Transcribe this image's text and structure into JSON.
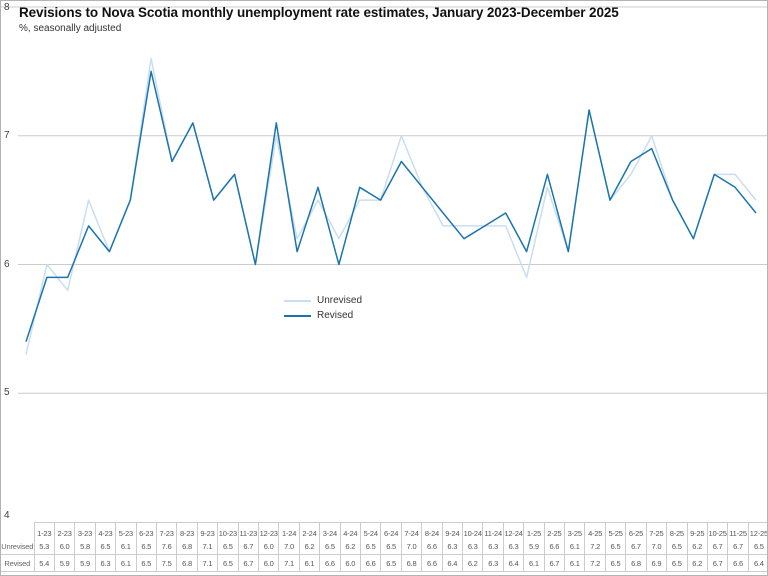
{
  "header": {
    "title": "Revisions to Nova Scotia monthly unemployment rate estimates, January 2023-December 2025",
    "subtitle": "%, seasonally adjusted"
  },
  "colors": {
    "unrevised": "#c9def0",
    "revised": "#1b75ad",
    "grid": "#cccccc",
    "table_line": "#cccccc",
    "text": "#333333"
  },
  "legend": {
    "items": [
      {
        "label": "Unrevised",
        "color_key": "unrevised"
      },
      {
        "label": "Revised",
        "color_key": "revised"
      }
    ]
  },
  "table": {
    "row_labels": [
      "Unrevised",
      "Revised"
    ]
  },
  "chart_data": {
    "type": "line",
    "title": "Revisions to Nova Scotia monthly unemployment rate estimates, January 2023-December 2025",
    "subtitle": "%, seasonally adjusted",
    "xlabel": "",
    "ylabel": "%",
    "ylim": [
      4,
      8
    ],
    "yticks": [
      8,
      7,
      6,
      5,
      4
    ],
    "grid": true,
    "legend_position": "center-left",
    "categories": [
      "1-23",
      "2-23",
      "3-23",
      "4-23",
      "5-23",
      "6-23",
      "7-23",
      "8-23",
      "9-23",
      "10-23",
      "11-23",
      "12-23",
      "1-24",
      "2-24",
      "3-24",
      "4-24",
      "5-24",
      "6-24",
      "7-24",
      "8-24",
      "9-24",
      "10-24",
      "11-24",
      "12-24",
      "1-25",
      "2-25",
      "3-25",
      "4-25",
      "5-25",
      "6-25",
      "7-25",
      "8-25",
      "9-25",
      "10-25",
      "11-25",
      "12-25"
    ],
    "series": [
      {
        "name": "Unrevised",
        "color_key": "unrevised",
        "values": [
          5.3,
          6.0,
          5.8,
          6.5,
          6.1,
          6.5,
          7.6,
          6.8,
          7.1,
          6.5,
          6.7,
          6.0,
          7.0,
          6.2,
          6.5,
          6.2,
          6.5,
          6.5,
          7.0,
          6.6,
          6.3,
          6.3,
          6.3,
          6.3,
          5.9,
          6.6,
          6.1,
          7.2,
          6.5,
          6.7,
          7.0,
          6.5,
          6.2,
          6.7,
          6.7,
          6.5
        ]
      },
      {
        "name": "Revised",
        "color_key": "revised",
        "values": [
          5.4,
          5.9,
          5.9,
          6.3,
          6.1,
          6.5,
          7.5,
          6.8,
          7.1,
          6.5,
          6.7,
          6.0,
          7.1,
          6.1,
          6.6,
          6.0,
          6.6,
          6.5,
          6.8,
          6.6,
          6.4,
          6.2,
          6.3,
          6.4,
          6.1,
          6.7,
          6.1,
          7.2,
          6.5,
          6.8,
          6.9,
          6.5,
          6.2,
          6.7,
          6.6,
          6.4
        ]
      }
    ]
  }
}
